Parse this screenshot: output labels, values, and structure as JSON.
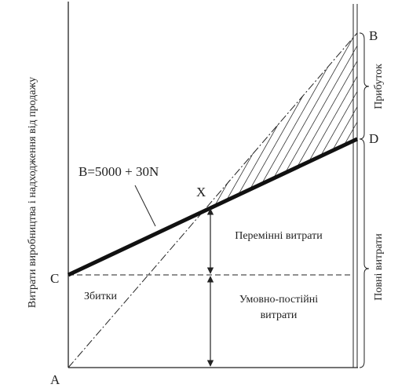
{
  "axis_label": "Витрати виробництва і надходження від продажу",
  "points": {
    "a": "A",
    "b": "B",
    "c": "C",
    "d": "D",
    "x": "X"
  },
  "formula": "B=5000 + 30N",
  "regions": {
    "profit": "Прибуток",
    "total_costs": "Повні витрати",
    "variable_costs": "Перемінні витрати",
    "loss": "Збитки",
    "fixed_costs_1": "Умовно-постійні",
    "fixed_costs_2": "витрати"
  }
}
